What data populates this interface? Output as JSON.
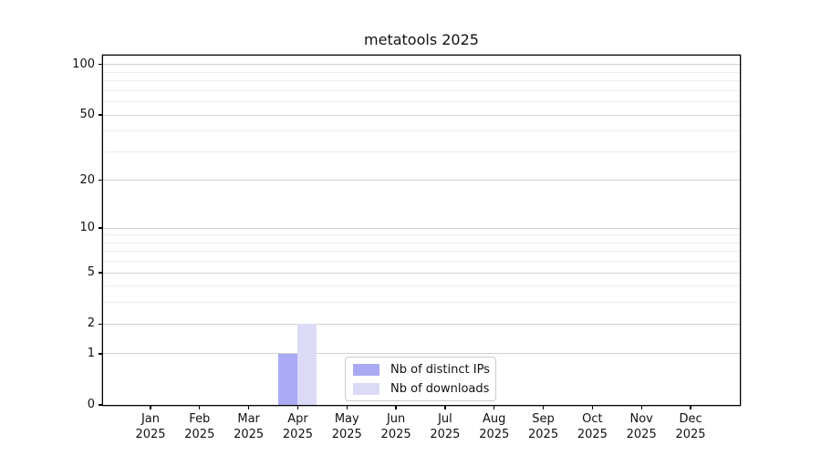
{
  "title": "metatools 2025",
  "chart_data": {
    "type": "bar",
    "title": "metatools 2025",
    "categories": [
      "Jan",
      "Feb",
      "Mar",
      "Apr",
      "May",
      "Jun",
      "Jul",
      "Aug",
      "Sep",
      "Oct",
      "Nov",
      "Dec"
    ],
    "category_year": "2025",
    "series": [
      {
        "name": "Nb of distinct IPs",
        "color": "#a9a9f4",
        "values": [
          0,
          0,
          0,
          1,
          0,
          0,
          0,
          0,
          0,
          0,
          0,
          0
        ]
      },
      {
        "name": "Nb of downloads",
        "color": "#dbdbf8",
        "values": [
          0,
          0,
          0,
          2,
          0,
          0,
          0,
          0,
          0,
          0,
          0,
          0
        ]
      }
    ],
    "yscale": "log1p",
    "ylim": [
      0,
      113
    ],
    "yticks": [
      0,
      1,
      2,
      5,
      10,
      20,
      50,
      100
    ],
    "yticks_minor": [
      3,
      4,
      6,
      7,
      8,
      9,
      30,
      40,
      60,
      70,
      80,
      90
    ],
    "grid": true,
    "legend_position": "inside-lower-center",
    "colors": {
      "grid_major": "#d2d2d2",
      "grid_minor": "#ededed",
      "spine": "#000000",
      "text": "#111111",
      "legend_border": "#cccccc",
      "background": "#ffffff"
    }
  }
}
